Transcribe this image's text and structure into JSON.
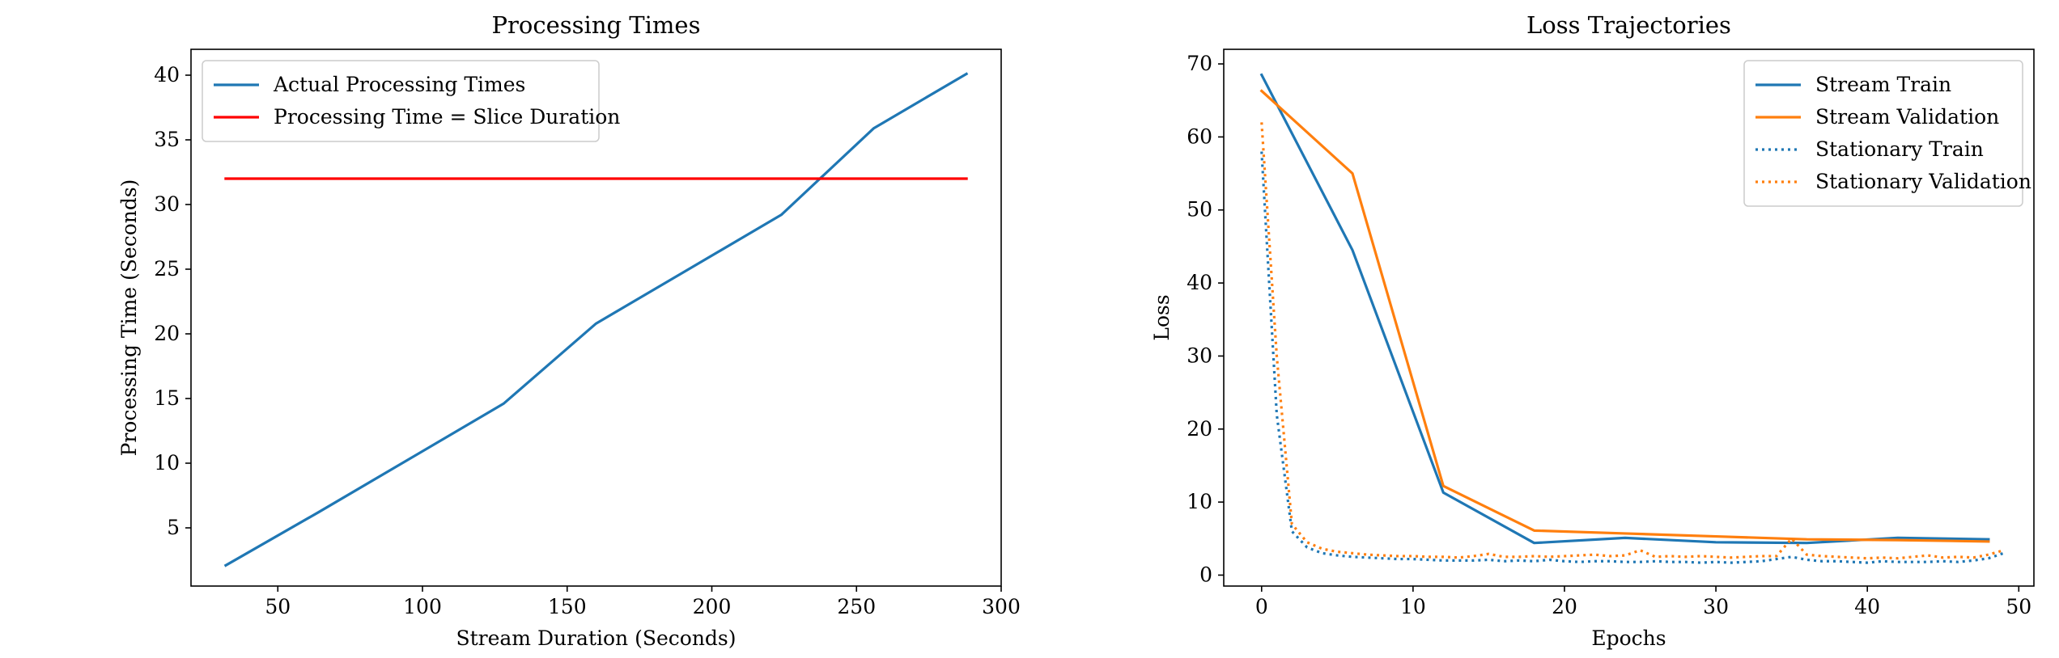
{
  "chart_data": [
    {
      "type": "line",
      "title": "Processing Times",
      "xlabel": "Stream Duration (Seconds)",
      "ylabel": "Processing Time (Seconds)",
      "xlim": [
        20,
        300
      ],
      "ylim": [
        0.5,
        42
      ],
      "xticks": [
        50,
        100,
        150,
        200,
        250,
        300
      ],
      "yticks": [
        5,
        10,
        15,
        20,
        25,
        30,
        35,
        40
      ],
      "grid": false,
      "legend": "top-left",
      "series": [
        {
          "name": "Actual Processing Times",
          "color": "#1f77b4",
          "style": "solid",
          "x": [
            32,
            64,
            96,
            128,
            160,
            192,
            224,
            256,
            288
          ],
          "y": [
            2.1,
            6.2,
            10.4,
            14.6,
            20.8,
            25.0,
            29.2,
            35.9,
            40.1
          ]
        },
        {
          "name": "Processing Time = Slice Duration",
          "color": "#ff0000",
          "style": "solid",
          "x": [
            32,
            288
          ],
          "y": [
            32,
            32
          ]
        }
      ]
    },
    {
      "type": "line",
      "title": "Loss Trajectories",
      "xlabel": "Epochs",
      "ylabel": "Loss",
      "xlim": [
        -2.5,
        51
      ],
      "ylim": [
        -1.5,
        72
      ],
      "xticks": [
        0,
        10,
        20,
        30,
        40,
        50
      ],
      "yticks": [
        0,
        10,
        20,
        30,
        40,
        50,
        60,
        70
      ],
      "grid": false,
      "legend": "top-right",
      "series": [
        {
          "name": "Stream Train",
          "color": "#1f77b4",
          "style": "solid",
          "x": [
            0,
            6,
            12,
            18,
            24,
            30,
            36,
            42,
            48
          ],
          "y": [
            68.5,
            44.5,
            11.3,
            4.4,
            5.1,
            4.5,
            4.4,
            5.1,
            4.9
          ]
        },
        {
          "name": "Stream Validation",
          "color": "#ff7f0e",
          "style": "solid",
          "x": [
            0,
            6,
            12,
            18,
            24,
            30,
            36,
            42,
            48
          ],
          "y": [
            66.3,
            55.0,
            12.2,
            6.1,
            5.7,
            5.3,
            4.9,
            4.8,
            4.6
          ]
        },
        {
          "name": "Stationary Train",
          "color": "#1f77b4",
          "style": "dotted",
          "x": [
            0,
            1,
            2,
            3,
            4,
            5,
            6,
            7,
            8,
            9,
            10,
            11,
            12,
            13,
            14,
            15,
            16,
            17,
            18,
            19,
            20,
            21,
            22,
            23,
            24,
            25,
            26,
            27,
            28,
            29,
            30,
            31,
            32,
            33,
            34,
            35,
            36,
            37,
            38,
            39,
            40,
            41,
            42,
            43,
            44,
            45,
            46,
            47,
            48,
            49
          ],
          "y": [
            58.0,
            22.0,
            6.0,
            3.8,
            3.0,
            2.7,
            2.5,
            2.4,
            2.3,
            2.2,
            2.2,
            2.1,
            2.0,
            2.0,
            2.0,
            2.1,
            1.9,
            2.0,
            1.9,
            2.1,
            1.9,
            1.8,
            1.9,
            1.9,
            1.8,
            1.8,
            1.9,
            1.8,
            1.8,
            1.7,
            1.8,
            1.7,
            1.8,
            1.9,
            2.2,
            2.5,
            2.1,
            1.9,
            1.9,
            1.8,
            1.7,
            1.9,
            1.8,
            1.8,
            1.8,
            1.9,
            1.8,
            2.0,
            2.3,
            3.0
          ]
        },
        {
          "name": "Stationary Validation",
          "color": "#ff7f0e",
          "style": "dotted",
          "x": [
            0,
            1,
            2,
            3,
            4,
            5,
            6,
            7,
            8,
            9,
            10,
            11,
            12,
            13,
            14,
            15,
            16,
            17,
            18,
            19,
            20,
            21,
            22,
            23,
            24,
            25,
            26,
            27,
            28,
            29,
            30,
            31,
            32,
            33,
            34,
            35,
            36,
            37,
            38,
            39,
            40,
            41,
            42,
            43,
            44,
            45,
            46,
            47,
            48,
            49
          ],
          "y": [
            62.0,
            30.0,
            7.0,
            4.5,
            3.6,
            3.2,
            3.0,
            2.8,
            2.7,
            2.6,
            2.6,
            2.5,
            2.5,
            2.4,
            2.6,
            2.9,
            2.5,
            2.5,
            2.6,
            2.5,
            2.6,
            2.7,
            2.8,
            2.6,
            2.7,
            3.4,
            2.5,
            2.6,
            2.5,
            2.6,
            2.5,
            2.4,
            2.5,
            2.6,
            2.6,
            5.0,
            2.8,
            2.6,
            2.5,
            2.4,
            2.3,
            2.4,
            2.3,
            2.5,
            2.7,
            2.4,
            2.5,
            2.4,
            2.8,
            3.4
          ]
        }
      ]
    }
  ]
}
